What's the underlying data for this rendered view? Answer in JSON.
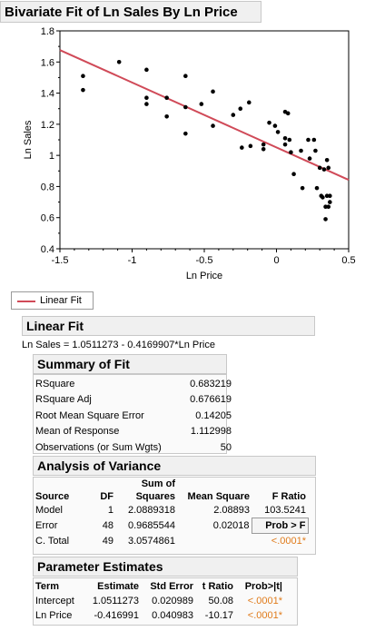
{
  "window_title": "Bivariate Fit of Ln Sales By Ln Price",
  "chart_data": {
    "type": "scatter",
    "xlabel": "Ln Price",
    "ylabel": "Ln Sales",
    "xlim": [
      -1.5,
      0.5
    ],
    "ylim": [
      0.4,
      1.8
    ],
    "xticks": [
      "-1.5",
      "-1",
      "-0.5",
      "0",
      "0.5"
    ],
    "yticks": [
      "0.4",
      "0.6",
      "0.8",
      "1",
      "1.2",
      "1.4",
      "1.6",
      "1.8"
    ],
    "grid": false,
    "colors": {
      "points": "#000000",
      "fit_line": "#d04a58"
    },
    "points": [
      {
        "x": -1.34,
        "y": 1.51
      },
      {
        "x": -1.34,
        "y": 1.42
      },
      {
        "x": -1.09,
        "y": 1.6
      },
      {
        "x": -0.9,
        "y": 1.55
      },
      {
        "x": -0.9,
        "y": 1.37
      },
      {
        "x": -0.9,
        "y": 1.33
      },
      {
        "x": -0.76,
        "y": 1.37
      },
      {
        "x": -0.76,
        "y": 1.25
      },
      {
        "x": -0.63,
        "y": 1.51
      },
      {
        "x": -0.63,
        "y": 1.31
      },
      {
        "x": -0.63,
        "y": 1.14
      },
      {
        "x": -0.52,
        "y": 1.33
      },
      {
        "x": -0.44,
        "y": 1.41
      },
      {
        "x": -0.44,
        "y": 1.19
      },
      {
        "x": -0.3,
        "y": 1.26
      },
      {
        "x": -0.25,
        "y": 1.3
      },
      {
        "x": -0.24,
        "y": 1.05
      },
      {
        "x": -0.19,
        "y": 1.34
      },
      {
        "x": -0.18,
        "y": 1.06
      },
      {
        "x": -0.09,
        "y": 1.07
      },
      {
        "x": -0.09,
        "y": 1.04
      },
      {
        "x": -0.05,
        "y": 1.21
      },
      {
        "x": -0.01,
        "y": 1.19
      },
      {
        "x": 0.01,
        "y": 1.15
      },
      {
        "x": 0.06,
        "y": 1.28
      },
      {
        "x": 0.06,
        "y": 1.11
      },
      {
        "x": 0.06,
        "y": 1.07
      },
      {
        "x": 0.08,
        "y": 1.27
      },
      {
        "x": 0.09,
        "y": 1.1
      },
      {
        "x": 0.1,
        "y": 1.02
      },
      {
        "x": 0.12,
        "y": 0.88
      },
      {
        "x": 0.17,
        "y": 1.03
      },
      {
        "x": 0.18,
        "y": 0.79
      },
      {
        "x": 0.22,
        "y": 1.1
      },
      {
        "x": 0.23,
        "y": 0.98
      },
      {
        "x": 0.26,
        "y": 1.1
      },
      {
        "x": 0.27,
        "y": 1.03
      },
      {
        "x": 0.28,
        "y": 0.79
      },
      {
        "x": 0.3,
        "y": 0.92
      },
      {
        "x": 0.31,
        "y": 0.74
      },
      {
        "x": 0.32,
        "y": 0.73
      },
      {
        "x": 0.33,
        "y": 0.91
      },
      {
        "x": 0.34,
        "y": 0.67
      },
      {
        "x": 0.34,
        "y": 0.59
      },
      {
        "x": 0.35,
        "y": 0.97
      },
      {
        "x": 0.35,
        "y": 0.74
      },
      {
        "x": 0.36,
        "y": 0.92
      },
      {
        "x": 0.36,
        "y": 0.67
      },
      {
        "x": 0.37,
        "y": 0.74
      },
      {
        "x": 0.37,
        "y": 0.7
      }
    ],
    "fit_line": {
      "intercept": 1.0511273,
      "slope": -0.4169907
    }
  },
  "legend": {
    "label": "Linear Fit"
  },
  "linear_fit": {
    "title": "Linear Fit",
    "equation": "Ln Sales = 1.0511273 - 0.4169907*Ln Price"
  },
  "summary_of_fit": {
    "title": "Summary of Fit",
    "rows": [
      {
        "label": "RSquare",
        "value": "0.683219"
      },
      {
        "label": "RSquare Adj",
        "value": "0.676619"
      },
      {
        "label": "Root Mean Square Error",
        "value": "0.14205"
      },
      {
        "label": "Mean of Response",
        "value": "1.112998"
      },
      {
        "label": "Observations (or Sum Wgts)",
        "value": "50"
      }
    ]
  },
  "analysis_of_variance": {
    "title": "Analysis of Variance",
    "headers": {
      "source": "Source",
      "df": "DF",
      "ss_top": "Sum of",
      "ss_bottom": "Squares",
      "ms": "Mean Square",
      "f": "F Ratio"
    },
    "rows": [
      {
        "source": "Model",
        "df": "1",
        "ss": "2.0889318",
        "ms": "2.08893",
        "f": "103.5241"
      },
      {
        "source": "Error",
        "df": "48",
        "ss": "0.9685544",
        "ms": "0.02018",
        "f": "Prob > F"
      },
      {
        "source": "C. Total",
        "df": "49",
        "ss": "3.0574861",
        "ms": "",
        "f": "<.0001*"
      }
    ]
  },
  "parameter_estimates": {
    "title": "Parameter Estimates",
    "headers": {
      "term": "Term",
      "estimate": "Estimate",
      "se": "Std Error",
      "t": "t Ratio",
      "p": "Prob>|t|"
    },
    "rows": [
      {
        "term": "Intercept",
        "estimate": "1.0511273",
        "se": "0.020989",
        "t": "50.08",
        "p": "<.0001*"
      },
      {
        "term": "Ln Price",
        "estimate": "-0.416991",
        "se": "0.040983",
        "t": "-10.17",
        "p": "<.0001*"
      }
    ]
  }
}
